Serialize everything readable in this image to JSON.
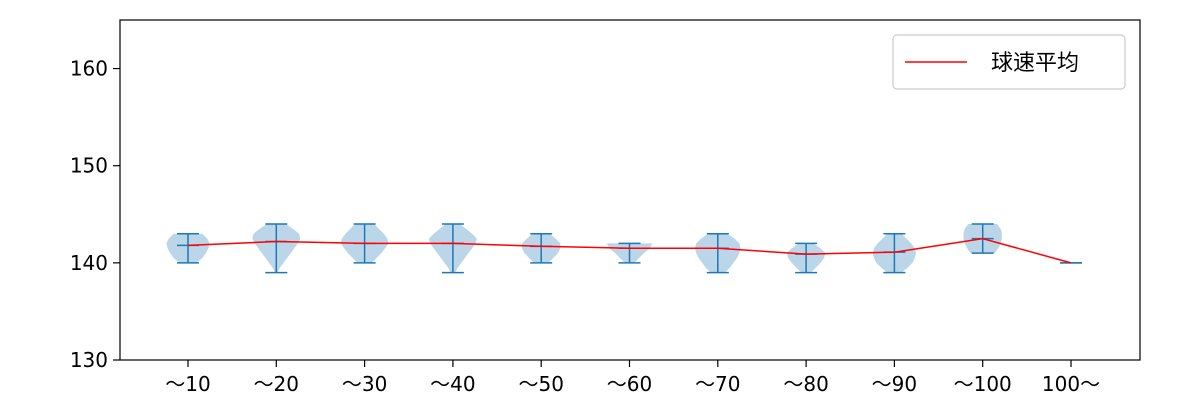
{
  "chart_data": {
    "type": "violin",
    "title": "",
    "xlabel": "",
    "ylabel": "",
    "ylim": [
      130,
      165
    ],
    "yticks": [
      130,
      140,
      150,
      160
    ],
    "grid": false,
    "legend_position": "top-right",
    "categories": [
      "〜10",
      "〜20",
      "〜30",
      "〜40",
      "〜50",
      "〜60",
      "〜70",
      "〜80",
      "〜90",
      "〜100",
      "100〜"
    ],
    "series": [
      {
        "name": "球速平均",
        "type": "line",
        "color": "#ff0000",
        "values": [
          141.8,
          142.2,
          142.0,
          142.0,
          141.7,
          141.5,
          141.5,
          140.9,
          141.1,
          142.5,
          140.0
        ]
      }
    ],
    "distributions": [
      {
        "category": "〜10",
        "min": 140,
        "max": 143,
        "mean": 141.8,
        "profile": [
          [
            140,
            0.35
          ],
          [
            140.5,
            0.6
          ],
          [
            141,
            0.75
          ],
          [
            141.5,
            0.85
          ],
          [
            142,
            0.9
          ],
          [
            142.5,
            0.8
          ],
          [
            143,
            0.6
          ]
        ]
      },
      {
        "category": "〜20",
        "min": 139,
        "max": 144,
        "mean": 142.2,
        "profile": [
          [
            139,
            0.05
          ],
          [
            139.5,
            0.15
          ],
          [
            140,
            0.3
          ],
          [
            140.5,
            0.45
          ],
          [
            141,
            0.6
          ],
          [
            141.5,
            0.75
          ],
          [
            142,
            0.9
          ],
          [
            142.5,
            1.0
          ],
          [
            143,
            0.95
          ],
          [
            143.5,
            0.7
          ],
          [
            144,
            0.4
          ]
        ]
      },
      {
        "category": "〜30",
        "min": 140,
        "max": 144,
        "mean": 142.0,
        "profile": [
          [
            140,
            0.3
          ],
          [
            140.5,
            0.5
          ],
          [
            141,
            0.7
          ],
          [
            141.5,
            0.85
          ],
          [
            142,
            1.0
          ],
          [
            142.5,
            0.95
          ],
          [
            143,
            0.8
          ],
          [
            143.5,
            0.6
          ],
          [
            144,
            0.4
          ]
        ]
      },
      {
        "category": "〜40",
        "min": 139,
        "max": 144,
        "mean": 142.0,
        "profile": [
          [
            139,
            0.1
          ],
          [
            139.5,
            0.2
          ],
          [
            140,
            0.35
          ],
          [
            140.5,
            0.5
          ],
          [
            141,
            0.65
          ],
          [
            141.5,
            0.8
          ],
          [
            142,
            0.95
          ],
          [
            142.5,
            1.0
          ],
          [
            143,
            0.8
          ],
          [
            143.5,
            0.55
          ],
          [
            144,
            0.3
          ]
        ]
      },
      {
        "category": "〜50",
        "min": 140,
        "max": 143,
        "mean": 141.7,
        "profile": [
          [
            140,
            0.3
          ],
          [
            140.5,
            0.5
          ],
          [
            141,
            0.7
          ],
          [
            141.5,
            0.8
          ],
          [
            142,
            0.8
          ],
          [
            142.5,
            0.6
          ],
          [
            143,
            0.35
          ]
        ]
      },
      {
        "category": "〜60",
        "min": 140,
        "max": 142,
        "mean": 141.5,
        "profile": [
          [
            140,
            0.2
          ],
          [
            140.5,
            0.4
          ],
          [
            141,
            0.6
          ],
          [
            141.5,
            0.85
          ],
          [
            142,
            0.95
          ]
        ]
      },
      {
        "category": "〜70",
        "min": 139,
        "max": 143,
        "mean": 141.5,
        "profile": [
          [
            139,
            0.3
          ],
          [
            139.5,
            0.5
          ],
          [
            140,
            0.65
          ],
          [
            140.5,
            0.8
          ],
          [
            141,
            0.9
          ],
          [
            141.5,
            0.95
          ],
          [
            142,
            0.9
          ],
          [
            142.5,
            0.7
          ],
          [
            143,
            0.4
          ]
        ]
      },
      {
        "category": "〜80",
        "min": 139,
        "max": 142,
        "mean": 140.9,
        "profile": [
          [
            139,
            0.2
          ],
          [
            139.5,
            0.4
          ],
          [
            140,
            0.6
          ],
          [
            140.5,
            0.75
          ],
          [
            141,
            0.8
          ],
          [
            141.5,
            0.6
          ],
          [
            142,
            0.3
          ]
        ]
      },
      {
        "category": "〜90",
        "min": 139,
        "max": 143,
        "mean": 141.1,
        "profile": [
          [
            139,
            0.3
          ],
          [
            139.5,
            0.55
          ],
          [
            140,
            0.75
          ],
          [
            140.5,
            0.85
          ],
          [
            141,
            0.9
          ],
          [
            141.5,
            0.85
          ],
          [
            142,
            0.7
          ],
          [
            142.5,
            0.5
          ],
          [
            143,
            0.3
          ]
        ]
      },
      {
        "category": "〜100",
        "min": 141,
        "max": 144,
        "mean": 142.5,
        "profile": [
          [
            141,
            0.5
          ],
          [
            141.5,
            0.65
          ],
          [
            142,
            0.75
          ],
          [
            142.5,
            0.8
          ],
          [
            143,
            0.8
          ],
          [
            143.5,
            0.75
          ],
          [
            144,
            0.6
          ]
        ]
      },
      {
        "category": "100〜",
        "min": 140,
        "max": 140,
        "mean": 140.0,
        "profile": []
      }
    ]
  }
}
